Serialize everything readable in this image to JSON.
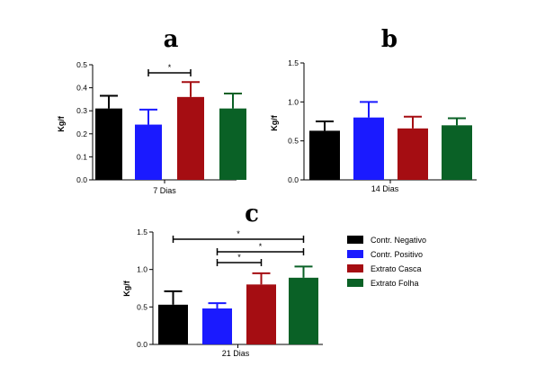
{
  "chart_data": [
    {
      "type": "bar",
      "panel_label": "a",
      "category": "7 Dias",
      "ylabel": "Kg/f",
      "ylim": [
        0,
        0.5
      ],
      "yticks": [
        "0.0",
        "0.1",
        "0.2",
        "0.3",
        "0.4",
        "0.5"
      ],
      "series": [
        {
          "name": "Contr. Negativo",
          "value": 0.31,
          "error": 0.055
        },
        {
          "name": "Contr. Positivo",
          "value": 0.24,
          "error": 0.065
        },
        {
          "name": "Extrato Casca",
          "value": 0.36,
          "error": 0.065
        },
        {
          "name": "Extrato Folha",
          "value": 0.31,
          "error": 0.065
        }
      ],
      "significance": [
        {
          "from": 1,
          "to": 2,
          "label": "*"
        }
      ]
    },
    {
      "type": "bar",
      "panel_label": "b",
      "category": "14 Dias",
      "ylabel": "Kg/f",
      "ylim": [
        0,
        1.5
      ],
      "yticks": [
        "0.0",
        "0.5",
        "1.0",
        "1.5"
      ],
      "series": [
        {
          "name": "Contr. Negativo",
          "value": 0.63,
          "error": 0.12
        },
        {
          "name": "Contr. Positivo",
          "value": 0.8,
          "error": 0.2
        },
        {
          "name": "Extrato Casca",
          "value": 0.66,
          "error": 0.15
        },
        {
          "name": "Extrato Folha",
          "value": 0.7,
          "error": 0.09
        }
      ],
      "significance": []
    },
    {
      "type": "bar",
      "panel_label": "c",
      "category": "21 Dias",
      "ylabel": "Kg/f",
      "ylim": [
        0,
        1.5
      ],
      "yticks": [
        "0.0",
        "0.5",
        "1.0",
        "1.5"
      ],
      "series": [
        {
          "name": "Contr. Negativo",
          "value": 0.53,
          "error": 0.18
        },
        {
          "name": "Contr. Positivo",
          "value": 0.48,
          "error": 0.07
        },
        {
          "name": "Extrato Casca",
          "value": 0.8,
          "error": 0.15
        },
        {
          "name": "Extrato Folha",
          "value": 0.89,
          "error": 0.15
        }
      ],
      "significance": [
        {
          "from": 0,
          "to": 3,
          "label": "*"
        },
        {
          "from": 1,
          "to": 3,
          "label": "*"
        },
        {
          "from": 1,
          "to": 2,
          "label": "*"
        }
      ]
    }
  ],
  "legend": [
    {
      "label": "Contr. Negativo",
      "color": "#000000"
    },
    {
      "label": "Contr. Positivo",
      "color": "#1a1aff"
    },
    {
      "label": "Extrato Casca",
      "color": "#a50d12"
    },
    {
      "label": "Extrato Folha",
      "color": "#0a6126"
    }
  ],
  "legend_position": "right"
}
